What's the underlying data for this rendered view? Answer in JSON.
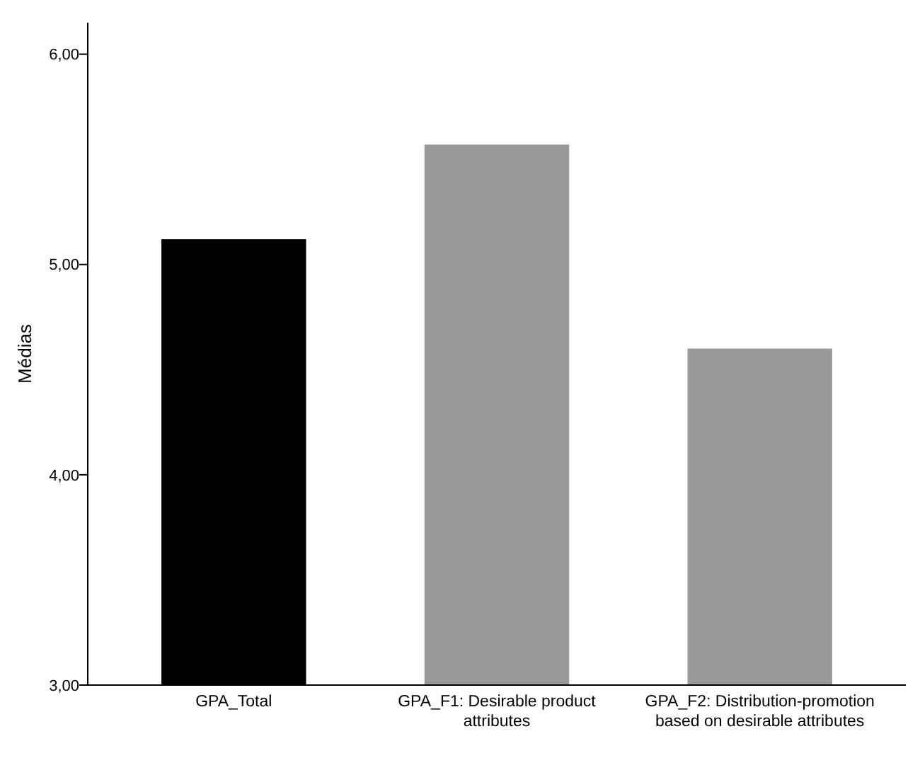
{
  "chart_data": {
    "type": "bar",
    "ylabel": "Médias",
    "categories": [
      "GPA_Total",
      "GPA_F1: Desirable product attributes",
      "GPA_F2: Distribution-promotion based on desirable attributes"
    ],
    "values": [
      5.12,
      5.57,
      4.6
    ],
    "colors": [
      "#000000",
      "#999999",
      "#999999"
    ],
    "ylim": [
      3,
      6.15
    ],
    "yticks": [
      {
        "value": 3,
        "label": "3,00"
      },
      {
        "value": 4,
        "label": "4,00"
      },
      {
        "value": 5,
        "label": "5,00"
      },
      {
        "value": 6,
        "label": "6,00"
      }
    ],
    "grid": false
  }
}
